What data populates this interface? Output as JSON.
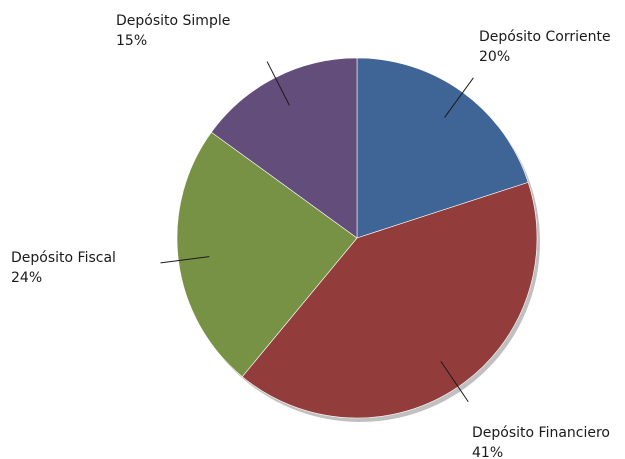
{
  "chart_data": {
    "type": "pie",
    "slices": [
      {
        "label": "Depósito Corriente",
        "pct_text": "20%",
        "value": 20,
        "color": "#3F6496"
      },
      {
        "label": "Depósito Financiero",
        "pct_text": "41%",
        "value": 41,
        "color": "#923D3B"
      },
      {
        "label": "Depósito Fiscal",
        "pct_text": "24%",
        "value": 24,
        "color": "#789245"
      },
      {
        "label": "Depósito Simple",
        "pct_text": "15%",
        "value": 15,
        "color": "#634D7A"
      }
    ],
    "start_angle_deg": 0,
    "direction": "clockwise",
    "legend": "none",
    "labels": "outside with leader lines"
  }
}
